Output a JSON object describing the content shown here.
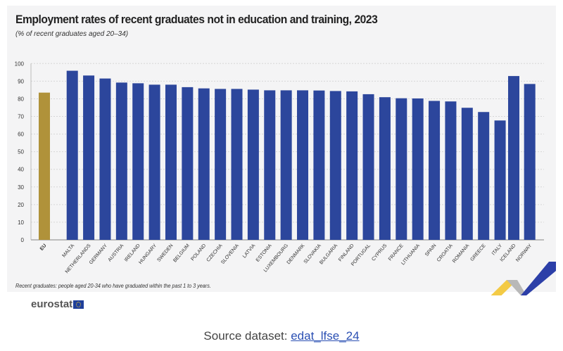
{
  "chart_data": {
    "type": "bar",
    "title": "Employment rates of recent graduates not in education and training, 2023",
    "subtitle": "(% of recent graduates aged 20–34)",
    "categories": [
      "EU",
      "MALTA",
      "NETHERLANDS",
      "GERMANY",
      "AUSTRIA",
      "IRELAND",
      "HUNGARY",
      "SWEDEN",
      "BELGIUM",
      "POLAND",
      "CZECHIA",
      "SLOVENIA",
      "LATVIA",
      "ESTONIA",
      "LUXEMBOURG",
      "DENMARK",
      "SLOVAKIA",
      "BULGARIA",
      "FINLAND",
      "PORTUGAL",
      "CYPRUS",
      "FRANCE",
      "LITHUANIA",
      "SPAIN",
      "CROATIA",
      "ROMANIA",
      "GREECE",
      "ITALY",
      "ICELAND",
      "NORWAY"
    ],
    "values": [
      83.5,
      95.9,
      93.2,
      91.5,
      89.2,
      88.8,
      88.0,
      88.0,
      86.6,
      85.9,
      85.6,
      85.6,
      85.2,
      84.8,
      84.8,
      84.8,
      84.7,
      84.4,
      84.2,
      82.6,
      80.9,
      80.3,
      80.2,
      78.8,
      78.5,
      74.9,
      72.5,
      67.7,
      92.9,
      88.4
    ],
    "ylim": [
      0,
      100
    ],
    "yticks": [
      0,
      10,
      20,
      30,
      40,
      50,
      60,
      70,
      80,
      90,
      100
    ],
    "grid": true,
    "colors": {
      "eu": "#b0923a",
      "country": "#2c469c"
    },
    "note": "Recent graduates: people aged 20-34 who have graduated within the past 1 to 3 years."
  },
  "logo": "eurostat",
  "source": {
    "label": "Source dataset:",
    "link": "edat_lfse_24"
  }
}
